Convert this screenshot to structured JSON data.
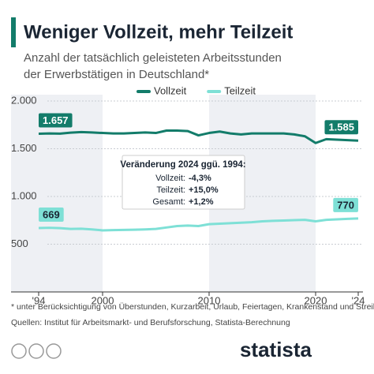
{
  "chart_data": {
    "type": "line",
    "title": "Weniger Vollzeit, mehr Teilzeit",
    "subtitle": [
      "Anzahl der tatsächlich geleisteten Arbeitsstunden",
      "der Erwerbstätigen in Deutschland*"
    ],
    "x": [
      1994,
      1995,
      1996,
      1997,
      1998,
      1999,
      2000,
      2001,
      2002,
      2003,
      2004,
      2005,
      2006,
      2007,
      2008,
      2009,
      2010,
      2011,
      2012,
      2013,
      2014,
      2015,
      2016,
      2017,
      2018,
      2019,
      2020,
      2021,
      2022,
      2023,
      2024
    ],
    "series": [
      {
        "name": "Vollzeit",
        "color": "#137c6a",
        "values": [
          1657,
          1660,
          1658,
          1668,
          1675,
          1670,
          1665,
          1660,
          1660,
          1665,
          1670,
          1665,
          1690,
          1690,
          1685,
          1640,
          1665,
          1680,
          1660,
          1650,
          1660,
          1660,
          1660,
          1660,
          1650,
          1630,
          1560,
          1600,
          1595,
          1590,
          1585
        ],
        "value_labels": [
          "1.657",
          null,
          null,
          null,
          null,
          null,
          null,
          null,
          null,
          null,
          null,
          null,
          null,
          null,
          null,
          null,
          null,
          null,
          null,
          null,
          null,
          null,
          null,
          null,
          null,
          null,
          null,
          null,
          null,
          null,
          "1.585"
        ]
      },
      {
        "name": "Teilzeit",
        "color": "#7ee0d6",
        "values": [
          669,
          672,
          668,
          660,
          662,
          655,
          645,
          648,
          650,
          652,
          655,
          660,
          675,
          690,
          695,
          690,
          710,
          715,
          720,
          725,
          730,
          740,
          745,
          748,
          752,
          755,
          740,
          755,
          760,
          765,
          770
        ],
        "value_labels": [
          "669",
          null,
          null,
          null,
          null,
          null,
          null,
          null,
          null,
          null,
          null,
          null,
          null,
          null,
          null,
          null,
          null,
          null,
          null,
          null,
          null,
          null,
          null,
          null,
          null,
          null,
          null,
          null,
          null,
          null,
          "770"
        ]
      }
    ],
    "xlim": [
      1994,
      2024
    ],
    "xticks": [
      {
        "value": 1994,
        "label": "'94"
      },
      2000,
      2010,
      2020,
      {
        "value": 2024,
        "label": "'24"
      }
    ],
    "ylim": [
      0,
      2000
    ],
    "yticks": [
      {
        "value": 500,
        "label": "500"
      },
      {
        "value": 1000,
        "label": "1.000"
      },
      {
        "value": 1500,
        "label": "1.500"
      },
      {
        "value": 2000,
        "label": "2.000"
      }
    ],
    "grid": true,
    "annotation": {
      "title": "Veränderung 2024 ggü. 1994:",
      "rows": [
        {
          "label": "Vollzeit:",
          "value": "-4,3%"
        },
        {
          "label": "Teilzeit:",
          "value": "+15,0%"
        },
        {
          "label": "Gesamt:",
          "value": "+1,2%"
        }
      ]
    },
    "footnote": "* unter Berücksichtigung von Überstunden, Kurzarbeit, Urlaub, Feiertagen, Krankenstand und Streiks",
    "source": "Quellen: Institut für Arbeitsmarkt- und Berufsforschung, Statista-Berechnung",
    "logo": "statista"
  }
}
